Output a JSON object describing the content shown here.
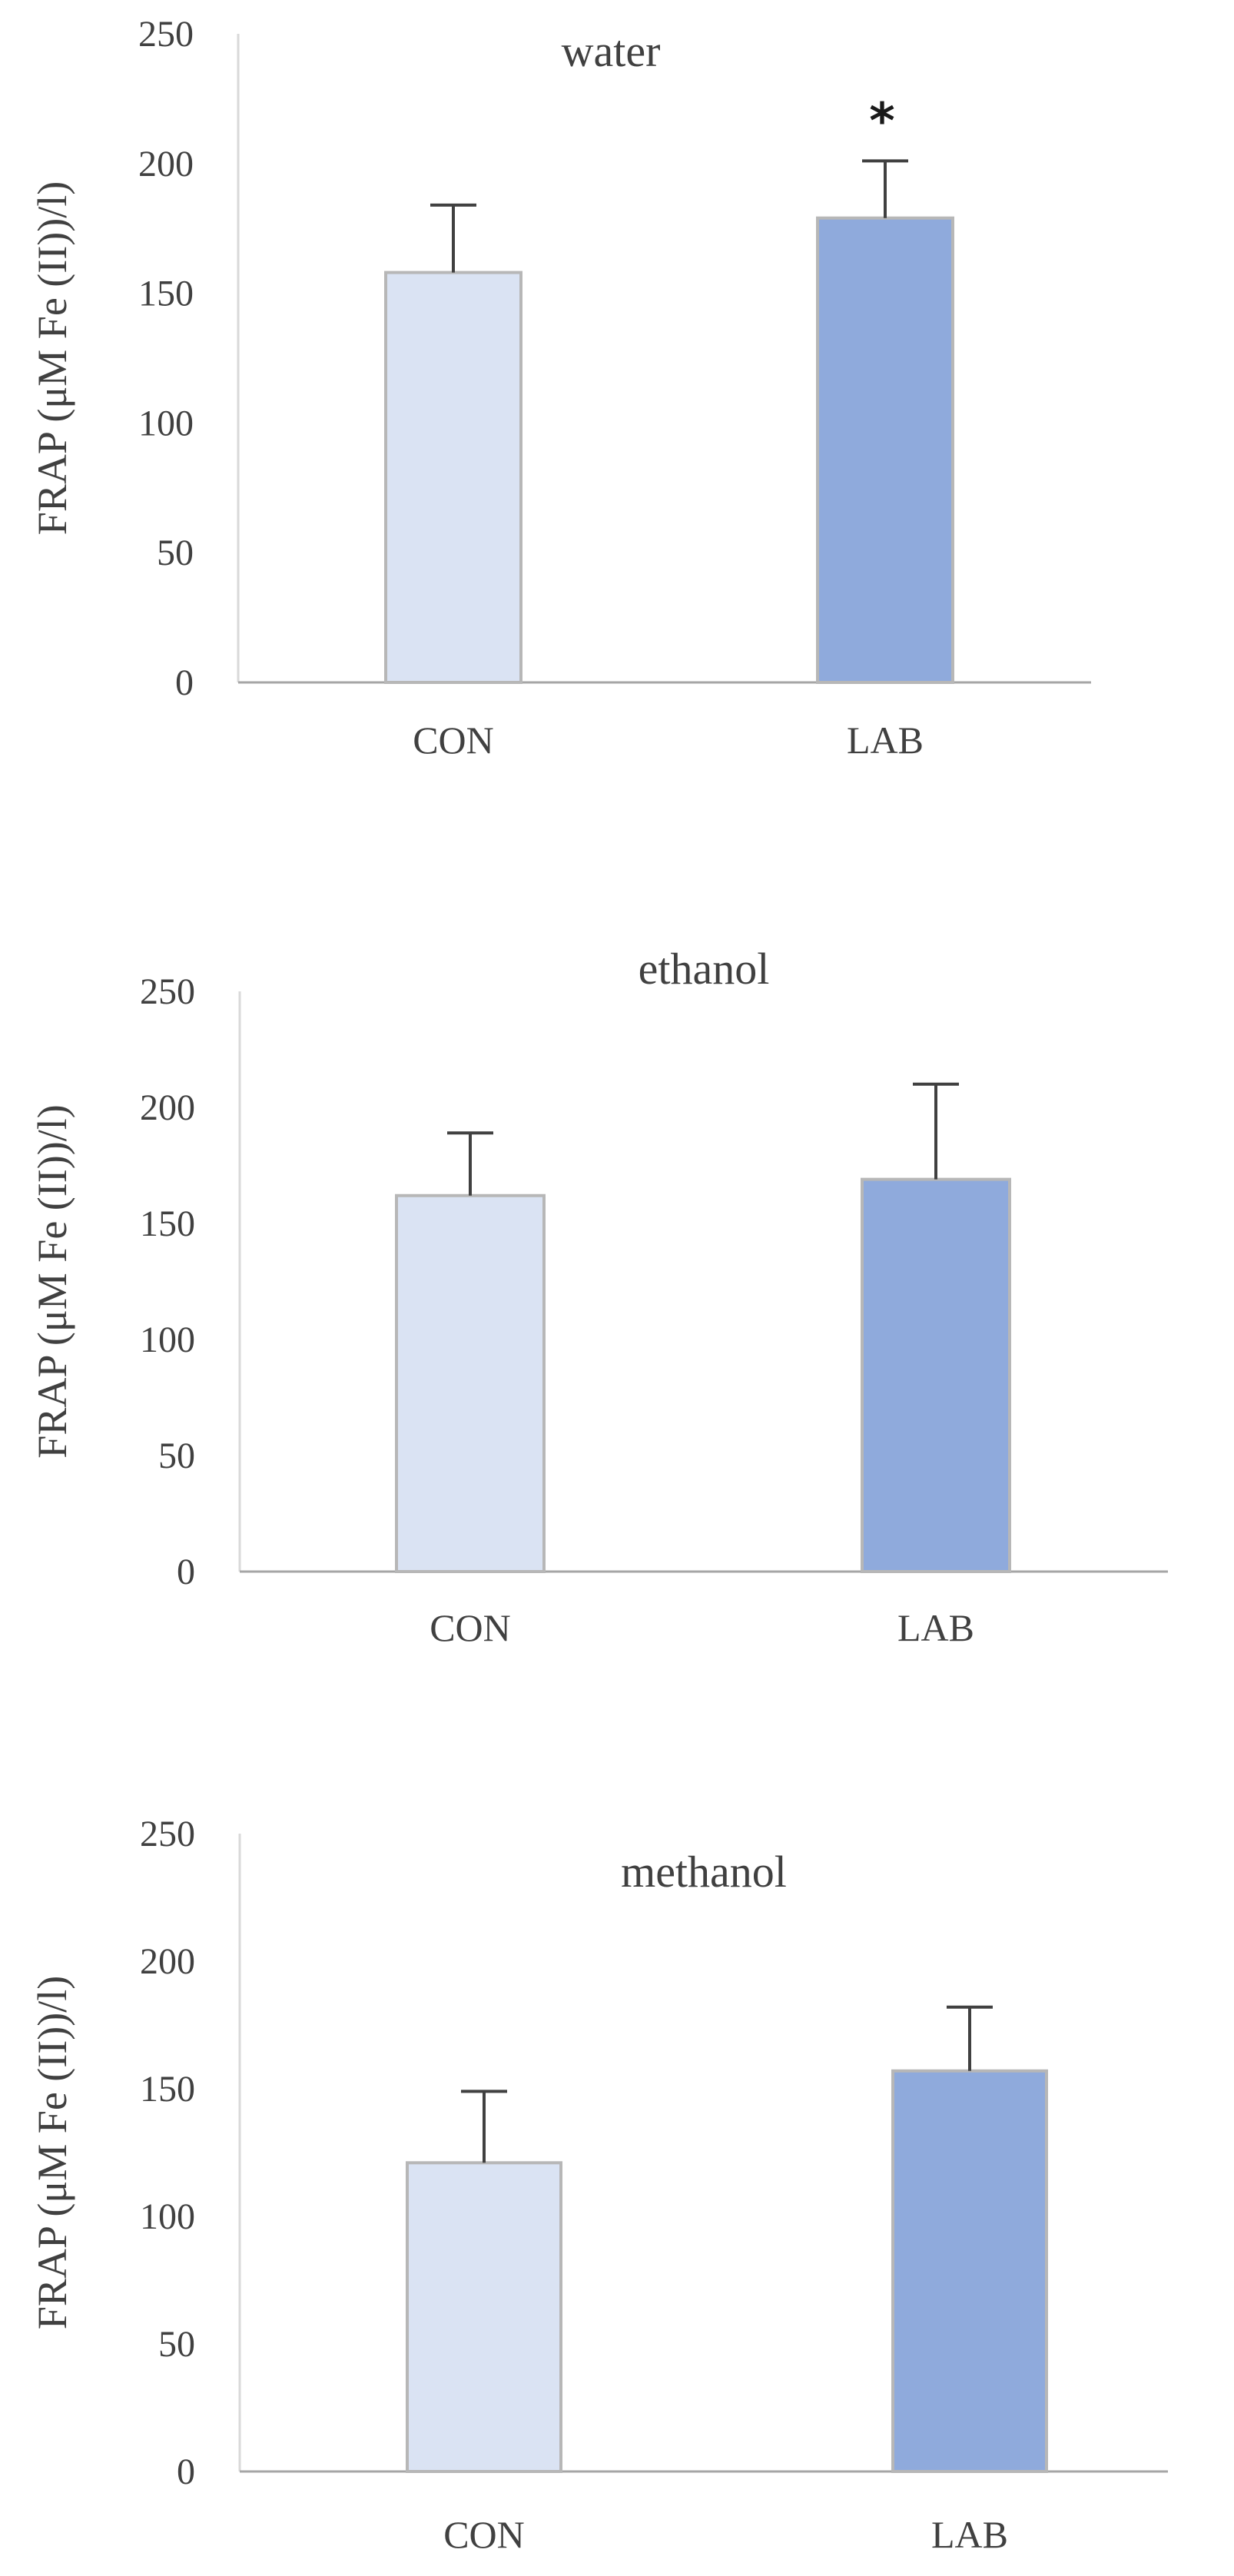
{
  "chart_data": [
    {
      "type": "bar",
      "title": "water",
      "categories": [
        "CON",
        "LAB"
      ],
      "values": [
        158,
        179
      ],
      "error_upper": [
        26,
        22
      ],
      "annotations": [
        "",
        "*"
      ],
      "ylabel": "FRAP (μM Fe (II))/l)",
      "xlabel": "",
      "ylim": [
        0,
        250
      ],
      "yticks": [
        "0",
        "50",
        "100",
        "150",
        "200",
        "250"
      ],
      "bar_colors": [
        "#dae3f3",
        "#8faadc"
      ],
      "grid": false
    },
    {
      "type": "bar",
      "title": "ethanol",
      "categories": [
        "CON",
        "LAB"
      ],
      "values": [
        162,
        169
      ],
      "error_upper": [
        27,
        41
      ],
      "annotations": [
        "",
        ""
      ],
      "ylabel": "FRAP (μM Fe (II))/l)",
      "xlabel": "",
      "ylim": [
        0,
        250
      ],
      "yticks": [
        "0",
        "50",
        "100",
        "150",
        "200",
        "250"
      ],
      "bar_colors": [
        "#dae3f3",
        "#8faadc"
      ],
      "grid": false
    },
    {
      "type": "bar",
      "title": "methanol",
      "categories": [
        "CON",
        "LAB"
      ],
      "values": [
        121,
        157
      ],
      "error_upper": [
        28,
        25
      ],
      "annotations": [
        "",
        ""
      ],
      "ylabel": "FRAP (μM Fe (II))/l)",
      "xlabel": "",
      "ylim": [
        0,
        250
      ],
      "yticks": [
        "0",
        "50",
        "100",
        "150",
        "200",
        "250"
      ],
      "bar_colors": [
        "#dae3f3",
        "#8faadc"
      ],
      "grid": false
    }
  ]
}
